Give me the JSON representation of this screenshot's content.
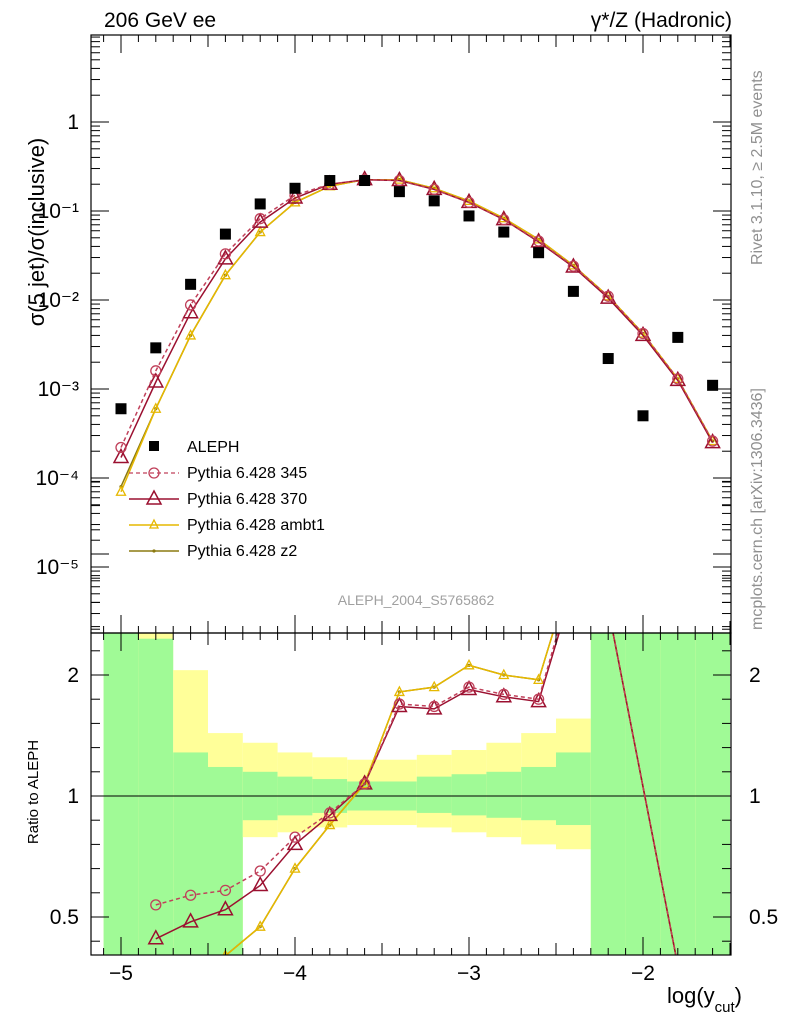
{
  "header": {
    "left": "206 GeV ee",
    "right": "γ*/Z (Hadronic)"
  },
  "side_labels": {
    "rivet": "Rivet 3.1.10, ≥ 2.5M events",
    "mcplots": "mcplots.cern.ch [arXiv:1306.3436]"
  },
  "analysis_label": "ALEPH_2004_S5765862",
  "colors": {
    "data": "#000000",
    "p345": "#c0405a",
    "p370": "#9b1030",
    "ambt1": "#e6b800",
    "z2": "#8c7a10",
    "band_green": "#a0fa96",
    "band_yellow": "#ffff99"
  },
  "chart_data": [
    {
      "type": "line",
      "ylabel": "σ(5 jet)/σ(inclusive)",
      "yscale": "log",
      "ylim": [
        2e-06,
        10
      ],
      "xlim": [
        -5.18,
        -1.45
      ],
      "y_ticks": [
        "1",
        "10⁻¹",
        "10⁻²",
        "10⁻³",
        "10⁻⁴",
        "10⁻⁵"
      ],
      "legend_position": "lower-left",
      "series": [
        {
          "name": "ALEPH",
          "marker": "square",
          "x": [
            -5.0,
            -4.8,
            -4.6,
            -4.4,
            -4.2,
            -4.0,
            -3.8,
            -3.6,
            -3.4,
            -3.2,
            -3.0,
            -2.8,
            -2.6,
            -2.4,
            -2.2,
            -2.0,
            -1.8,
            -1.6
          ],
          "y": [
            0.0006,
            0.0029,
            0.015,
            0.055,
            0.12,
            0.18,
            0.22,
            0.22,
            0.165,
            0.13,
            0.088,
            0.058,
            0.034,
            0.0125,
            0.0022,
            0.0005,
            0.0038,
            0.0011
          ]
        },
        {
          "name": "Pythia 6.428 345",
          "marker": "circle",
          "dashed": true,
          "x": [
            -5.0,
            -4.8,
            -4.6,
            -4.4,
            -4.2,
            -4.0,
            -3.8,
            -3.6,
            -3.4,
            -3.2,
            -3.0,
            -2.8,
            -2.6,
            -2.4,
            -2.2,
            -2.0,
            -1.8,
            -1.6
          ],
          "y": [
            0.00022,
            0.0016,
            0.0088,
            0.033,
            0.082,
            0.15,
            0.2,
            0.225,
            0.22,
            0.175,
            0.125,
            0.08,
            0.046,
            0.024,
            0.011,
            0.0042,
            0.0013,
            0.00026
          ]
        },
        {
          "name": "Pythia 6.428 370",
          "marker": "triangle",
          "x": [
            -5.0,
            -4.8,
            -4.6,
            -4.4,
            -4.2,
            -4.0,
            -3.8,
            -3.6,
            -3.4,
            -3.2,
            -3.0,
            -2.8,
            -2.6,
            -2.4,
            -2.2,
            -2.0,
            -1.8,
            -1.6
          ],
          "y": [
            0.00017,
            0.0012,
            0.0072,
            0.029,
            0.075,
            0.14,
            0.2,
            0.225,
            0.22,
            0.175,
            0.125,
            0.08,
            0.045,
            0.0235,
            0.0105,
            0.004,
            0.00125,
            0.00025
          ]
        },
        {
          "name": "Pythia 6.428 ambt1",
          "marker": "small-triangle",
          "x": [
            -5.0,
            -4.8,
            -4.6,
            -4.4,
            -4.2,
            -4.0,
            -3.8,
            -3.6,
            -3.4,
            -3.2,
            -3.0,
            -2.8,
            -2.6,
            -2.4,
            -2.2,
            -2.0,
            -1.8,
            -1.6
          ],
          "y": [
            7e-05,
            0.0006,
            0.004,
            0.019,
            0.058,
            0.125,
            0.19,
            0.225,
            0.225,
            0.18,
            0.13,
            0.083,
            0.048,
            0.0245,
            0.011,
            0.0042,
            0.0013,
            0.00026
          ]
        },
        {
          "name": "Pythia 6.428 z2",
          "marker": "dot",
          "x": [
            -5.0,
            -4.8,
            -4.6,
            -4.4,
            -4.2,
            -4.0,
            -3.8,
            -3.6,
            -3.4,
            -3.2,
            -3.0,
            -2.8,
            -2.6,
            -2.4,
            -2.2,
            -2.0,
            -1.8,
            -1.6
          ],
          "y": [
            8e-05,
            0.0006,
            0.004,
            0.019,
            0.058,
            0.125,
            0.19,
            0.225,
            0.225,
            0.18,
            0.13,
            0.083,
            0.048,
            0.0245,
            0.011,
            0.0042,
            0.0013,
            0.00026
          ]
        }
      ]
    },
    {
      "type": "line",
      "ylabel": "Ratio to ALEPH",
      "xlabel": "log(y_cut)",
      "xlim": [
        -5.18,
        -1.45
      ],
      "ylim": [
        0.34,
        2.33
      ],
      "x_ticks": [
        "−5",
        "−4",
        "−3",
        "−2"
      ],
      "y_ticks": [
        "0.5",
        "1",
        "2"
      ],
      "bands": {
        "edges": [
          -5.1,
          -4.9,
          -4.7,
          -4.5,
          -4.3,
          -4.1,
          -3.9,
          -3.7,
          -3.5,
          -3.3,
          -3.1,
          -2.9,
          -2.7,
          -2.5,
          -2.3,
          -2.1,
          -1.9,
          -1.7,
          -1.5
        ],
        "green_lo": [
          0.34,
          0.34,
          0.34,
          0.34,
          0.9,
          0.92,
          0.93,
          0.94,
          0.94,
          0.93,
          0.92,
          0.91,
          0.9,
          0.88,
          0.34,
          0.34,
          0.34,
          0.34
        ],
        "green_hi": [
          2.33,
          1.65,
          1.18,
          1.12,
          1.1,
          1.08,
          1.07,
          1.06,
          1.06,
          1.08,
          1.09,
          1.1,
          1.12,
          1.18,
          2.33,
          2.33,
          2.33,
          2.33
        ],
        "yellow_lo": [
          0.34,
          0.34,
          0.34,
          0.34,
          0.83,
          0.85,
          0.87,
          0.88,
          0.88,
          0.87,
          0.85,
          0.83,
          0.8,
          0.78,
          0.34,
          0.34,
          0.34,
          0.34
        ],
        "yellow_hi": [
          2.33,
          2.1,
          1.52,
          1.26,
          1.22,
          1.18,
          1.16,
          1.15,
          1.15,
          1.17,
          1.19,
          1.22,
          1.26,
          1.32,
          2.33,
          2.33,
          2.33,
          2.33
        ]
      },
      "series": [
        {
          "name": "Pythia 6.428 345",
          "x": [
            -4.8,
            -4.6,
            -4.4,
            -4.2,
            -4.0,
            -3.8,
            -3.6,
            -3.4,
            -3.2,
            -3.0,
            -2.8,
            -2.6,
            -2.4,
            -2.35,
            -1.8
          ],
          "y": [
            0.55,
            0.59,
            0.61,
            0.69,
            0.83,
            0.93,
            1.05,
            1.38,
            1.37,
            1.45,
            1.42,
            1.4,
            1.9,
            2.33,
            0.3
          ]
        },
        {
          "name": "Pythia 6.428 370",
          "x": [
            -4.8,
            -4.6,
            -4.4,
            -4.2,
            -4.0,
            -3.8,
            -3.6,
            -3.4,
            -3.2,
            -3.0,
            -2.8,
            -2.6,
            -2.4,
            -2.35,
            -1.8
          ],
          "y": [
            0.41,
            0.48,
            0.53,
            0.63,
            0.8,
            0.92,
            1.05,
            1.37,
            1.36,
            1.44,
            1.41,
            1.39,
            1.87,
            2.33,
            0.3
          ]
        },
        {
          "name": "Pythia 6.428 ambt1",
          "x": [
            -4.6,
            -4.4,
            -4.2,
            -4.0,
            -3.8,
            -3.6,
            -3.4,
            -3.2,
            -3.0,
            -2.8,
            -2.6,
            -2.4,
            -2.35,
            -1.8
          ],
          "y": [
            0.25,
            0.34,
            0.46,
            0.7,
            0.88,
            1.05,
            1.43,
            1.45,
            1.54,
            1.5,
            1.48,
            1.95,
            2.33,
            0.3
          ]
        },
        {
          "name": "Pythia 6.428 z2",
          "x": [
            -4.6,
            -4.4,
            -4.2,
            -4.0,
            -3.8,
            -3.6,
            -3.4,
            -3.2,
            -3.0,
            -2.8,
            -2.6,
            -2.4,
            -2.35,
            -1.8
          ],
          "y": [
            0.25,
            0.34,
            0.46,
            0.7,
            0.88,
            1.05,
            1.43,
            1.45,
            1.54,
            1.5,
            1.48,
            1.95,
            2.33,
            0.3
          ]
        }
      ]
    }
  ]
}
